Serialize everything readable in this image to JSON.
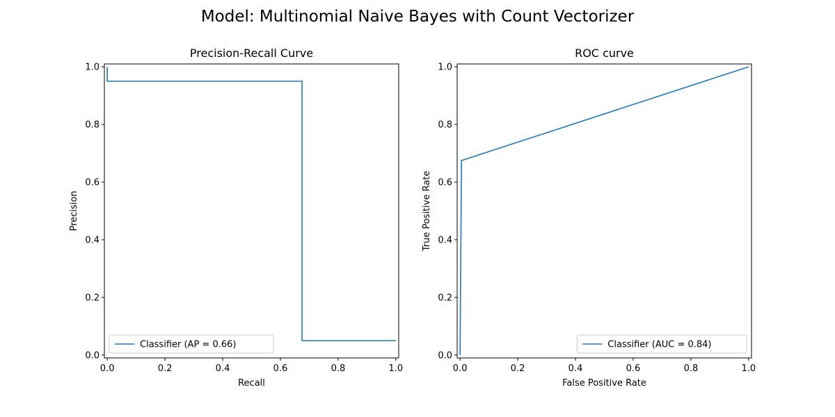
{
  "figure": {
    "suptitle": "Model: Multinomial Naive Bayes with Count Vectorizer"
  },
  "chart_data": [
    {
      "type": "line",
      "title": "Precision-Recall Curve",
      "xlabel": "Recall",
      "ylabel": "Precision",
      "xlim": [
        0,
        1
      ],
      "ylim": [
        0,
        1
      ],
      "xticks": [
        "0.0",
        "0.2",
        "0.4",
        "0.6",
        "0.8",
        "1.0"
      ],
      "yticks": [
        "0.0",
        "0.2",
        "0.4",
        "0.6",
        "0.8",
        "1.0"
      ],
      "grid": false,
      "legend": {
        "placement": "lower-left",
        "entries": [
          "Classifier (AP = 0.66)"
        ]
      },
      "drawstyle": "steps-post",
      "series": [
        {
          "name": "Classifier (AP = 0.66)",
          "color": "#1f77b4",
          "x": [
            0.0,
            0.0,
            0.675,
            0.675,
            1.0
          ],
          "y": [
            1.0,
            0.95,
            0.95,
            0.05,
            0.05
          ]
        }
      ]
    },
    {
      "type": "line",
      "title": "ROC curve",
      "xlabel": "False Positive Rate",
      "ylabel": "True Positive Rate",
      "xlim": [
        0,
        1
      ],
      "ylim": [
        0,
        1
      ],
      "xticks": [
        "0.0",
        "0.2",
        "0.4",
        "0.6",
        "0.8",
        "1.0"
      ],
      "yticks": [
        "0.0",
        "0.2",
        "0.4",
        "0.6",
        "0.8",
        "1.0"
      ],
      "grid": false,
      "legend": {
        "placement": "lower-right",
        "entries": [
          "Classifier (AUC = 0.84)"
        ]
      },
      "series": [
        {
          "name": "Classifier (AUC = 0.84)",
          "color": "#1f77b4",
          "x": [
            0.0,
            0.0,
            0.005,
            1.0
          ],
          "y": [
            0.0,
            0.0,
            0.675,
            1.0
          ]
        }
      ]
    }
  ]
}
